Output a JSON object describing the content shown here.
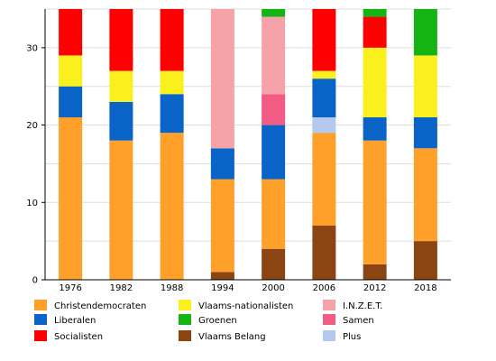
{
  "chart_data": {
    "type": "bar",
    "stacked": true,
    "categories": [
      "1976",
      "1982",
      "1988",
      "1994",
      "2000",
      "2006",
      "2012",
      "2018"
    ],
    "ylim": [
      0,
      35
    ],
    "yticks": [
      0,
      10,
      20,
      30
    ],
    "grid": true,
    "legend_position": "bottom",
    "series": [
      {
        "name": "Vlaams Belang",
        "color": "#8B4513",
        "values": [
          0,
          0,
          0,
          1,
          4,
          7,
          2,
          5
        ]
      },
      {
        "name": "Christendemocraten",
        "color": "#FFA02A",
        "values": [
          21,
          18,
          19,
          12,
          9,
          12,
          16,
          12
        ]
      },
      {
        "name": "Plus",
        "color": "#B4C8F0",
        "values": [
          0,
          0,
          0,
          0,
          0,
          2,
          0,
          0
        ]
      },
      {
        "name": "Liberalen",
        "color": "#0A64C8",
        "values": [
          4,
          5,
          5,
          4,
          7,
          5,
          3,
          4
        ]
      },
      {
        "name": "Samen",
        "color": "#F25C84",
        "values": [
          0,
          0,
          0,
          0,
          4,
          0,
          0,
          0
        ]
      },
      {
        "name": "I.N.Z.E.T.",
        "color": "#F5A3A8",
        "values": [
          0,
          0,
          0,
          18,
          10,
          0,
          0,
          0
        ]
      },
      {
        "name": "Vlaams-nationalisten",
        "color": "#FAF01E",
        "values": [
          4,
          4,
          3,
          0,
          0,
          1,
          9,
          8
        ]
      },
      {
        "name": "Socialisten",
        "color": "#FF0000",
        "values": [
          6,
          8,
          8,
          0,
          0,
          8,
          4,
          0
        ]
      },
      {
        "name": "Groenen",
        "color": "#14B414",
        "values": [
          0,
          0,
          0,
          0,
          1,
          0,
          1,
          6
        ]
      }
    ],
    "legend": [
      {
        "name": "Christendemocraten",
        "color": "#FFA02A"
      },
      {
        "name": "Liberalen",
        "color": "#0A64C8"
      },
      {
        "name": "Socialisten",
        "color": "#FF0000"
      },
      {
        "name": "Vlaams-nationalisten",
        "color": "#FAF01E"
      },
      {
        "name": "Groenen",
        "color": "#14B414"
      },
      {
        "name": "Vlaams Belang",
        "color": "#8B4513"
      },
      {
        "name": "I.N.Z.E.T.",
        "color": "#F5A3A8"
      },
      {
        "name": "Samen",
        "color": "#F25C84"
      },
      {
        "name": "Plus",
        "color": "#B4C8F0"
      }
    ]
  }
}
